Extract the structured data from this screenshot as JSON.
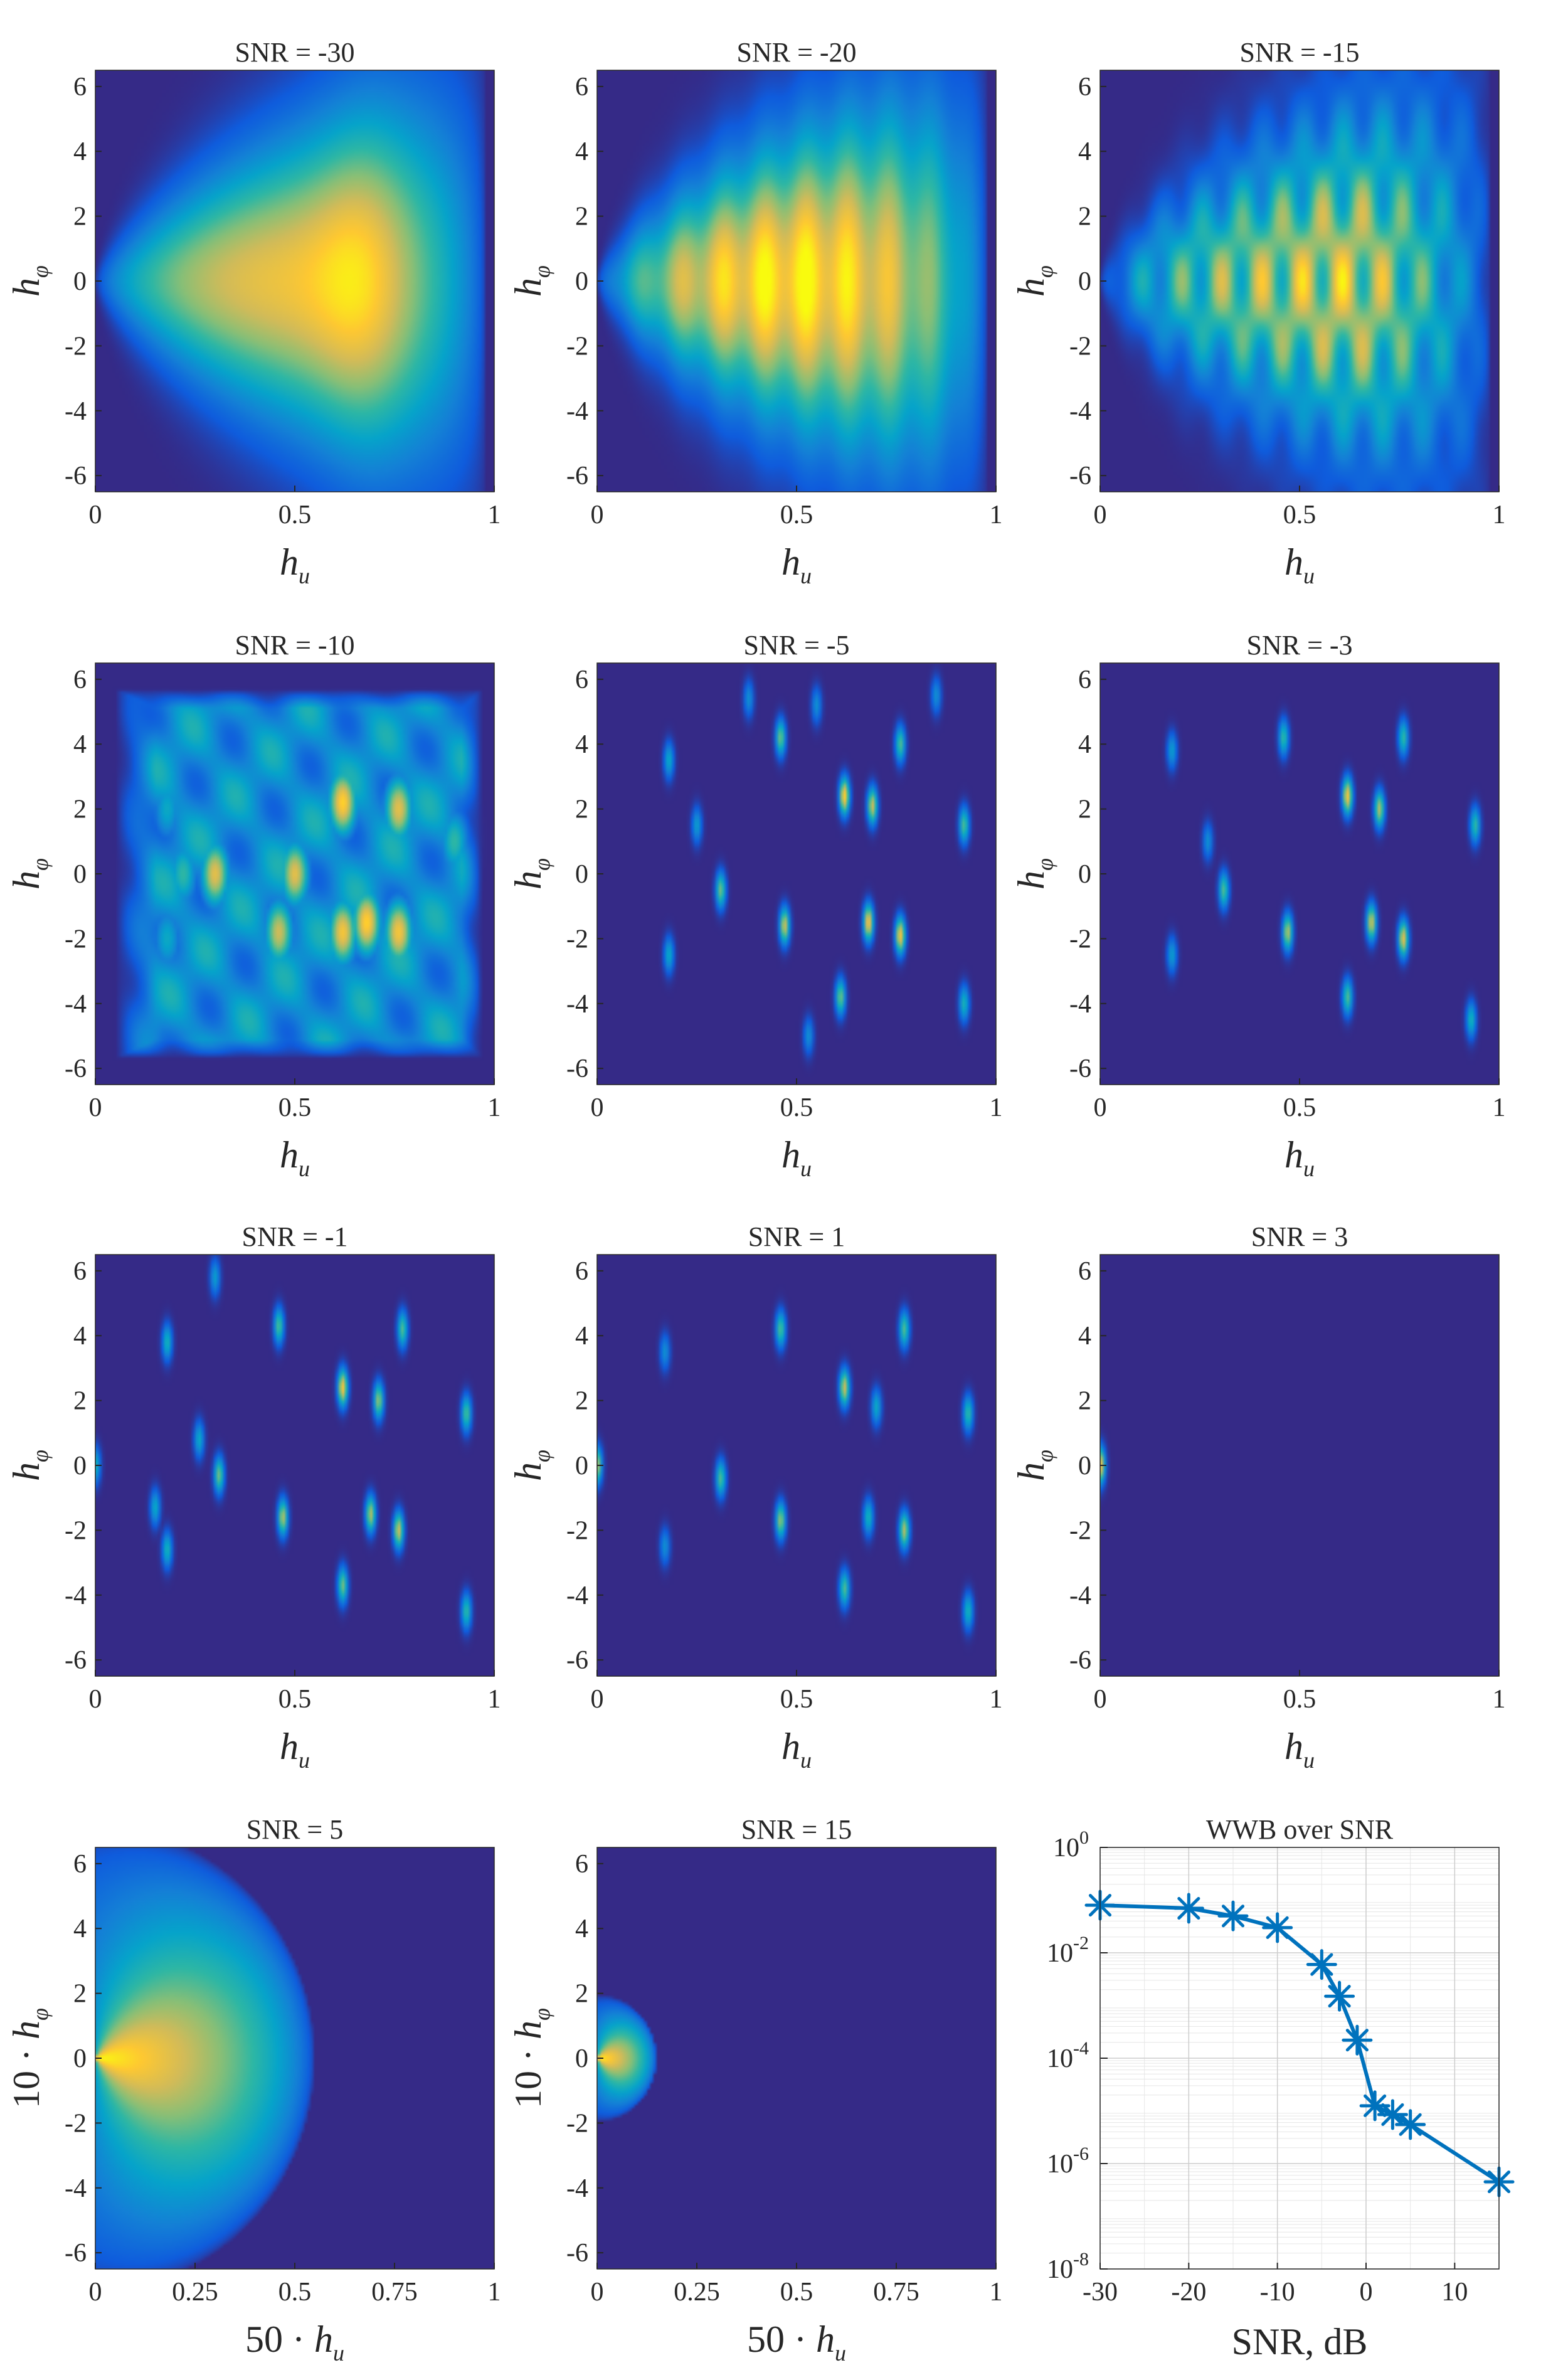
{
  "figure": {
    "colormap": [
      "#352a87",
      "#0f5cdd",
      "#1481d6",
      "#06a4ca",
      "#2eb7a4",
      "#87bf77",
      "#d1bb59",
      "#fec832",
      "#f9fb0e"
    ],
    "background_color": "#352a87"
  },
  "chart_data": [
    {
      "type": "heatmap",
      "title": "SNR = -30",
      "snr": -30,
      "pattern": "smooth",
      "xlabel": "h",
      "xlabel_sub": "u",
      "ylabel": "h",
      "ylabel_sub": "φ",
      "xlim": [
        0,
        1
      ],
      "ylim": [
        -6.5,
        6.5
      ],
      "x_ticks": [
        0,
        0.5,
        1
      ],
      "x_tick_labels": [
        "0",
        "0.5",
        "1"
      ],
      "y_ticks": [
        -6,
        -4,
        -2,
        0,
        2,
        4,
        6
      ],
      "y_tick_labels": [
        "-6",
        "-4",
        "-2",
        "0",
        "2",
        "4",
        "6"
      ],
      "peaks": []
    },
    {
      "type": "heatmap",
      "title": "SNR = -20",
      "snr": -20,
      "pattern": "smooth",
      "xlabel": "h",
      "xlabel_sub": "u",
      "ylabel": "h",
      "ylabel_sub": "φ",
      "xlim": [
        0,
        1
      ],
      "ylim": [
        -6.5,
        6.5
      ],
      "x_ticks": [
        0,
        0.5,
        1
      ],
      "x_tick_labels": [
        "0",
        "0.5",
        "1"
      ],
      "y_ticks": [
        -6,
        -4,
        -2,
        0,
        2,
        4,
        6
      ],
      "y_tick_labels": [
        "-6",
        "-4",
        "-2",
        "0",
        "2",
        "4",
        "6"
      ],
      "peaks": []
    },
    {
      "type": "heatmap",
      "title": "SNR = -15",
      "snr": -15,
      "pattern": "textured",
      "xlabel": "h",
      "xlabel_sub": "u",
      "ylabel": "h",
      "ylabel_sub": "φ",
      "xlim": [
        0,
        1
      ],
      "ylim": [
        -6.5,
        6.5
      ],
      "x_ticks": [
        0,
        0.5,
        1
      ],
      "x_tick_labels": [
        "0",
        "0.5",
        "1"
      ],
      "y_ticks": [
        -6,
        -4,
        -2,
        0,
        2,
        4,
        6
      ],
      "y_tick_labels": [
        "-6",
        "-4",
        "-2",
        "0",
        "2",
        "4",
        "6"
      ],
      "peaks": []
    },
    {
      "type": "heatmap",
      "title": "SNR = -10",
      "snr": -10,
      "pattern": "blobs",
      "xlabel": "h",
      "xlabel_sub": "u",
      "ylabel": "h",
      "ylabel_sub": "φ",
      "xlim": [
        0,
        1
      ],
      "ylim": [
        -6.5,
        6.5
      ],
      "x_ticks": [
        0,
        0.5,
        1
      ],
      "x_tick_labels": [
        "0",
        "0.5",
        "1"
      ],
      "y_ticks": [
        -6,
        -4,
        -2,
        0,
        2,
        4,
        6
      ],
      "y_tick_labels": [
        "-6",
        "-4",
        "-2",
        "0",
        "2",
        "4",
        "6"
      ],
      "peaks": [
        {
          "x": 0.3,
          "y": 0,
          "w": 0.8
        },
        {
          "x": 0.5,
          "y": 0,
          "w": 0.8
        },
        {
          "x": 0.62,
          "y": 2.2,
          "w": 0.9
        },
        {
          "x": 0.62,
          "y": -1.8,
          "w": 0.85
        },
        {
          "x": 0.68,
          "y": -1.5,
          "w": 0.9
        },
        {
          "x": 0.76,
          "y": 2.0,
          "w": 0.8
        },
        {
          "x": 0.76,
          "y": -1.8,
          "w": 0.85
        },
        {
          "x": 0.46,
          "y": -1.8,
          "w": 0.75
        },
        {
          "x": 0.22,
          "y": 0,
          "w": 0.5
        },
        {
          "x": 0.18,
          "y": 2.0,
          "w": 0.4
        },
        {
          "x": 0.18,
          "y": -2.0,
          "w": 0.4
        },
        {
          "x": 0.9,
          "y": 1.0,
          "w": 0.5
        }
      ]
    },
    {
      "type": "heatmap",
      "title": "SNR = -5",
      "snr": -5,
      "pattern": "peaks",
      "xlabel": "h",
      "xlabel_sub": "u",
      "ylabel": "h",
      "ylabel_sub": "φ",
      "xlim": [
        0,
        1
      ],
      "ylim": [
        -6.5,
        6.5
      ],
      "x_ticks": [
        0,
        0.5,
        1
      ],
      "x_tick_labels": [
        "0",
        "0.5",
        "1"
      ],
      "y_ticks": [
        -6,
        -4,
        -2,
        0,
        2,
        4,
        6
      ],
      "y_tick_labels": [
        "-6",
        "-4",
        "-2",
        "0",
        "2",
        "4",
        "6"
      ],
      "peaks": [
        {
          "x": 0.62,
          "y": 2.4,
          "w": 0.9
        },
        {
          "x": 0.68,
          "y": -1.5,
          "w": 0.85
        },
        {
          "x": 0.76,
          "y": -1.9,
          "w": 0.85
        },
        {
          "x": 0.47,
          "y": -1.6,
          "w": 0.75
        },
        {
          "x": 0.69,
          "y": 2.1,
          "w": 0.75
        },
        {
          "x": 0.31,
          "y": -0.5,
          "w": 0.6
        },
        {
          "x": 0.61,
          "y": -3.8,
          "w": 0.6
        },
        {
          "x": 0.46,
          "y": 4.2,
          "w": 0.6
        },
        {
          "x": 0.76,
          "y": 4.0,
          "w": 0.55
        },
        {
          "x": 0.92,
          "y": 1.5,
          "w": 0.55
        },
        {
          "x": 0.92,
          "y": -4.0,
          "w": 0.45
        },
        {
          "x": 0.18,
          "y": 3.5,
          "w": 0.4
        },
        {
          "x": 0.18,
          "y": -2.5,
          "w": 0.4
        },
        {
          "x": 0.25,
          "y": 1.5,
          "w": 0.35
        },
        {
          "x": 0.38,
          "y": 5.4,
          "w": 0.3
        },
        {
          "x": 0.55,
          "y": 5.2,
          "w": 0.3
        },
        {
          "x": 0.53,
          "y": -5.0,
          "w": 0.3
        },
        {
          "x": 0.85,
          "y": 5.5,
          "w": 0.3
        }
      ]
    },
    {
      "type": "heatmap",
      "title": "SNR = -3",
      "snr": -3,
      "pattern": "peaks",
      "xlabel": "h",
      "xlabel_sub": "u",
      "ylabel": "h",
      "ylabel_sub": "φ",
      "xlim": [
        0,
        1
      ],
      "ylim": [
        -6.5,
        6.5
      ],
      "x_ticks": [
        0,
        0.5,
        1
      ],
      "x_tick_labels": [
        "0",
        "0.5",
        "1"
      ],
      "y_ticks": [
        -6,
        -4,
        -2,
        0,
        2,
        4,
        6
      ],
      "y_tick_labels": [
        "-6",
        "-4",
        "-2",
        "0",
        "2",
        "4",
        "6"
      ],
      "peaks": [
        {
          "x": 0.62,
          "y": 2.4,
          "w": 0.85
        },
        {
          "x": 0.76,
          "y": -2.0,
          "w": 0.8
        },
        {
          "x": 0.47,
          "y": -1.8,
          "w": 0.7
        },
        {
          "x": 0.68,
          "y": -1.5,
          "w": 0.75
        },
        {
          "x": 0.7,
          "y": 2.0,
          "w": 0.7
        },
        {
          "x": 0.31,
          "y": -0.5,
          "w": 0.55
        },
        {
          "x": 0.62,
          "y": -3.8,
          "w": 0.55
        },
        {
          "x": 0.46,
          "y": 4.2,
          "w": 0.5
        },
        {
          "x": 0.76,
          "y": 4.2,
          "w": 0.5
        },
        {
          "x": 0.94,
          "y": 1.5,
          "w": 0.5
        },
        {
          "x": 0.93,
          "y": -4.5,
          "w": 0.45
        },
        {
          "x": 0.18,
          "y": 3.8,
          "w": 0.35
        },
        {
          "x": 0.18,
          "y": -2.5,
          "w": 0.35
        },
        {
          "x": 0.27,
          "y": 1.0,
          "w": 0.3
        }
      ]
    },
    {
      "type": "heatmap",
      "title": "SNR = -1",
      "snr": -1,
      "pattern": "peaks",
      "xlabel": "h",
      "xlabel_sub": "u",
      "ylabel": "h",
      "ylabel_sub": "φ",
      "xlim": [
        0,
        1
      ],
      "ylim": [
        -6.5,
        6.5
      ],
      "x_ticks": [
        0,
        0.5,
        1
      ],
      "x_tick_labels": [
        "0",
        "0.5",
        "1"
      ],
      "y_ticks": [
        -6,
        -4,
        -2,
        0,
        2,
        4,
        6
      ],
      "y_tick_labels": [
        "-6",
        "-4",
        "-2",
        "0",
        "2",
        "4",
        "6"
      ],
      "peaks": [
        {
          "x": 0.62,
          "y": 2.4,
          "w": 0.85
        },
        {
          "x": 0.76,
          "y": -2.0,
          "w": 0.75
        },
        {
          "x": 0.47,
          "y": -1.6,
          "w": 0.7
        },
        {
          "x": 0.69,
          "y": -1.5,
          "w": 0.7
        },
        {
          "x": 0.71,
          "y": 2.0,
          "w": 0.65
        },
        {
          "x": 0.31,
          "y": -0.3,
          "w": 0.6
        },
        {
          "x": 0.62,
          "y": -3.7,
          "w": 0.6
        },
        {
          "x": 0.46,
          "y": 4.3,
          "w": 0.55
        },
        {
          "x": 0.77,
          "y": 4.2,
          "w": 0.55
        },
        {
          "x": 0.93,
          "y": 1.6,
          "w": 0.55
        },
        {
          "x": 0.93,
          "y": -4.5,
          "w": 0.5
        },
        {
          "x": 0.18,
          "y": 3.8,
          "w": 0.45
        },
        {
          "x": 0.18,
          "y": -2.6,
          "w": 0.45
        },
        {
          "x": 0.26,
          "y": 0.8,
          "w": 0.4
        },
        {
          "x": 0.15,
          "y": -1.3,
          "w": 0.4
        },
        {
          "x": 0.3,
          "y": 5.8,
          "w": 0.35
        },
        {
          "x": 0.0,
          "y": 0,
          "w": 0.45
        }
      ]
    },
    {
      "type": "heatmap",
      "title": "SNR = 1",
      "snr": 1,
      "pattern": "peaks",
      "xlabel": "h",
      "xlabel_sub": "u",
      "ylabel": "h",
      "ylabel_sub": "φ",
      "xlim": [
        0,
        1
      ],
      "ylim": [
        -6.5,
        6.5
      ],
      "x_ticks": [
        0,
        0.5,
        1
      ],
      "x_tick_labels": [
        "0",
        "0.5",
        "1"
      ],
      "y_ticks": [
        -6,
        -4,
        -2,
        0,
        2,
        4,
        6
      ],
      "y_tick_labels": [
        "-6",
        "-4",
        "-2",
        "0",
        "2",
        "4",
        "6"
      ],
      "peaks": [
        {
          "x": 0.62,
          "y": 2.4,
          "w": 0.75
        },
        {
          "x": 0.77,
          "y": -2.0,
          "w": 0.7
        },
        {
          "x": 0.46,
          "y": -1.7,
          "w": 0.65
        },
        {
          "x": 0.46,
          "y": 4.2,
          "w": 0.55
        },
        {
          "x": 0.77,
          "y": 4.2,
          "w": 0.55
        },
        {
          "x": 0.31,
          "y": -0.4,
          "w": 0.55
        },
        {
          "x": 0.62,
          "y": -3.8,
          "w": 0.55
        },
        {
          "x": 0.93,
          "y": 1.6,
          "w": 0.5
        },
        {
          "x": 0.93,
          "y": -4.5,
          "w": 0.45
        },
        {
          "x": 0.68,
          "y": -1.6,
          "w": 0.45
        },
        {
          "x": 0.7,
          "y": 1.8,
          "w": 0.4
        },
        {
          "x": 0.17,
          "y": 3.5,
          "w": 0.3
        },
        {
          "x": 0.17,
          "y": -2.5,
          "w": 0.3
        },
        {
          "x": 0.0,
          "y": 0,
          "w": 0.7
        }
      ]
    },
    {
      "type": "heatmap",
      "title": "SNR = 3",
      "snr": 3,
      "pattern": "peaks",
      "xlabel": "h",
      "xlabel_sub": "u",
      "ylabel": "h",
      "ylabel_sub": "φ",
      "xlim": [
        0,
        1
      ],
      "ylim": [
        -6.5,
        6.5
      ],
      "x_ticks": [
        0,
        0.5,
        1
      ],
      "x_tick_labels": [
        "0",
        "0.5",
        "1"
      ],
      "y_ticks": [
        -6,
        -4,
        -2,
        0,
        2,
        4,
        6
      ],
      "y_tick_labels": [
        "-6",
        "-4",
        "-2",
        "0",
        "2",
        "4",
        "6"
      ],
      "peaks": [
        {
          "x": 0.0,
          "y": 0,
          "w": 0.85
        }
      ]
    },
    {
      "type": "heatmap",
      "title": "SNR = 5",
      "snr": 5,
      "pattern": "cone",
      "xlabel_prefix": "50 · ",
      "xlabel": "h",
      "xlabel_sub": "u",
      "ylabel_prefix": "10 · ",
      "ylabel": "h",
      "ylabel_sub": "φ",
      "xlim": [
        0,
        1
      ],
      "ylim": [
        -6.5,
        6.5
      ],
      "x_ticks": [
        0,
        0.25,
        0.5,
        0.75,
        1
      ],
      "x_tick_labels": [
        "0",
        "0.25",
        "0.5",
        "0.75",
        "1"
      ],
      "y_ticks": [
        -6,
        -4,
        -2,
        0,
        2,
        4,
        6
      ],
      "y_tick_labels": [
        "-6",
        "-4",
        "-2",
        "0",
        "2",
        "4",
        "6"
      ],
      "cone_radius": 0.55,
      "peaks": []
    },
    {
      "type": "heatmap",
      "title": "SNR = 15",
      "snr": 15,
      "pattern": "cone",
      "xlabel_prefix": "50 · ",
      "xlabel": "h",
      "xlabel_sub": "u",
      "ylabel_prefix": "10 · ",
      "ylabel": "h",
      "ylabel_sub": "φ",
      "xlim": [
        0,
        1
      ],
      "ylim": [
        -6.5,
        6.5
      ],
      "x_ticks": [
        0,
        0.25,
        0.5,
        0.75,
        1
      ],
      "x_tick_labels": [
        "0",
        "0.25",
        "0.5",
        "0.75",
        "1"
      ],
      "y_ticks": [
        -6,
        -4,
        -2,
        0,
        2,
        4,
        6
      ],
      "y_tick_labels": [
        "-6",
        "-4",
        "-2",
        "0",
        "2",
        "4",
        "6"
      ],
      "cone_radius": 0.15,
      "peaks": []
    },
    {
      "type": "line",
      "title": "WWB over SNR",
      "yscale": "log",
      "xlabel": "SNR, dB",
      "ylabel": "",
      "xlim": [
        -30,
        15
      ],
      "ylim": [
        1e-08,
        1
      ],
      "x_ticks": [
        -30,
        -20,
        -10,
        0,
        10
      ],
      "x_tick_labels": [
        "-30",
        "-20",
        "-10",
        "0",
        "10"
      ],
      "y_ticks": [
        1e-08,
        1e-06,
        0.0001,
        0.01,
        1
      ],
      "y_tick_base": [
        "10",
        "10",
        "10",
        "10",
        "10"
      ],
      "y_tick_exp": [
        "-8",
        "-6",
        "-4",
        "-2",
        "0"
      ],
      "grid": true,
      "marker": "asterisk",
      "color": "#0072bd",
      "x": [
        -30,
        -20,
        -15,
        -10,
        -5,
        -3,
        -1,
        1,
        3,
        5,
        15
      ],
      "y": [
        0.08,
        0.07,
        0.05,
        0.03,
        0.006,
        0.0015,
        0.00022,
        1.25e-05,
        8.5e-06,
        5.5e-06,
        4.5e-07
      ]
    }
  ]
}
